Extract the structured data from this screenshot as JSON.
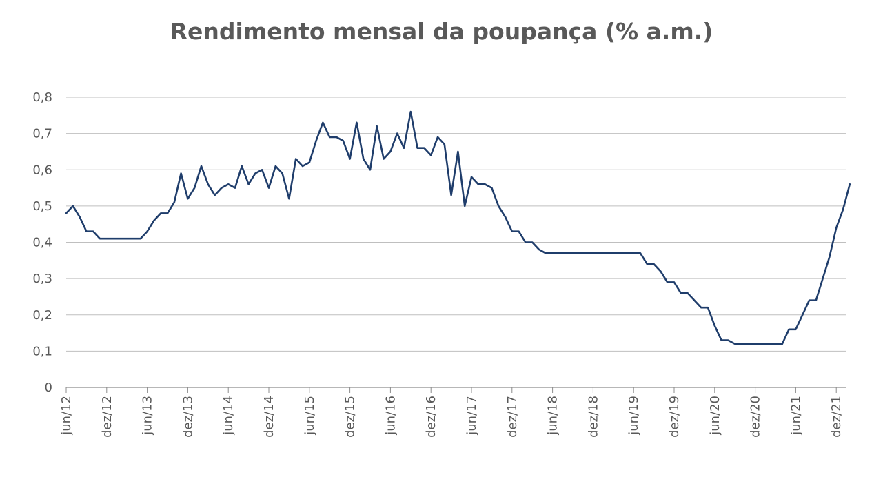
{
  "chart_data": {
    "type": "line",
    "title": "Rendimento mensal da poupança (% a.m.)",
    "xlabel": "",
    "ylabel": "",
    "ylim": [
      0,
      0.8
    ],
    "yticks": [
      "0",
      "0,1",
      "0,2",
      "0,3",
      "0,4",
      "0,5",
      "0,6",
      "0,7",
      "0,8"
    ],
    "grid": true,
    "legend": "none",
    "x_start": "jun/12",
    "x_tick_labels": [
      "jun/12",
      "dez/12",
      "jun/13",
      "dez/13",
      "jun/14",
      "dez/14",
      "jun/15",
      "dez/15",
      "jun/16",
      "dez/16",
      "jun/17",
      "dez/17",
      "jun/18",
      "dez/18",
      "jun/19",
      "dez/19",
      "jun/20",
      "dez/20",
      "jun/21",
      "dez/21"
    ],
    "line_color": "#1f3d6b",
    "series": [
      {
        "values": [
          0.48,
          0.5,
          0.47,
          0.43,
          0.43,
          0.41,
          0.41,
          0.41,
          0.41,
          0.41,
          0.41,
          0.41,
          0.43,
          0.46,
          0.48,
          0.48,
          0.51,
          0.59,
          0.52,
          0.55,
          0.61,
          0.56,
          0.53,
          0.55,
          0.56,
          0.55,
          0.61,
          0.56,
          0.59,
          0.6,
          0.55,
          0.61,
          0.59,
          0.52,
          0.63,
          0.61,
          0.62,
          0.68,
          0.73,
          0.69,
          0.69,
          0.68,
          0.63,
          0.73,
          0.63,
          0.6,
          0.72,
          0.63,
          0.65,
          0.7,
          0.66,
          0.76,
          0.66,
          0.66,
          0.64,
          0.69,
          0.67,
          0.53,
          0.65,
          0.5,
          0.58,
          0.56,
          0.56,
          0.55,
          0.5,
          0.47,
          0.43,
          0.43,
          0.4,
          0.4,
          0.38,
          0.37,
          0.37,
          0.37,
          0.37,
          0.37,
          0.37,
          0.37,
          0.37,
          0.37,
          0.37,
          0.37,
          0.37,
          0.37,
          0.37,
          0.37,
          0.34,
          0.34,
          0.32,
          0.29,
          0.29,
          0.26,
          0.26,
          0.24,
          0.22,
          0.22,
          0.17,
          0.13,
          0.13,
          0.12,
          0.12,
          0.12,
          0.12,
          0.12,
          0.12,
          0.12,
          0.12,
          0.16,
          0.16,
          0.2,
          0.24,
          0.24,
          0.3,
          0.36,
          0.44,
          0.49,
          0.56
        ]
      }
    ]
  }
}
